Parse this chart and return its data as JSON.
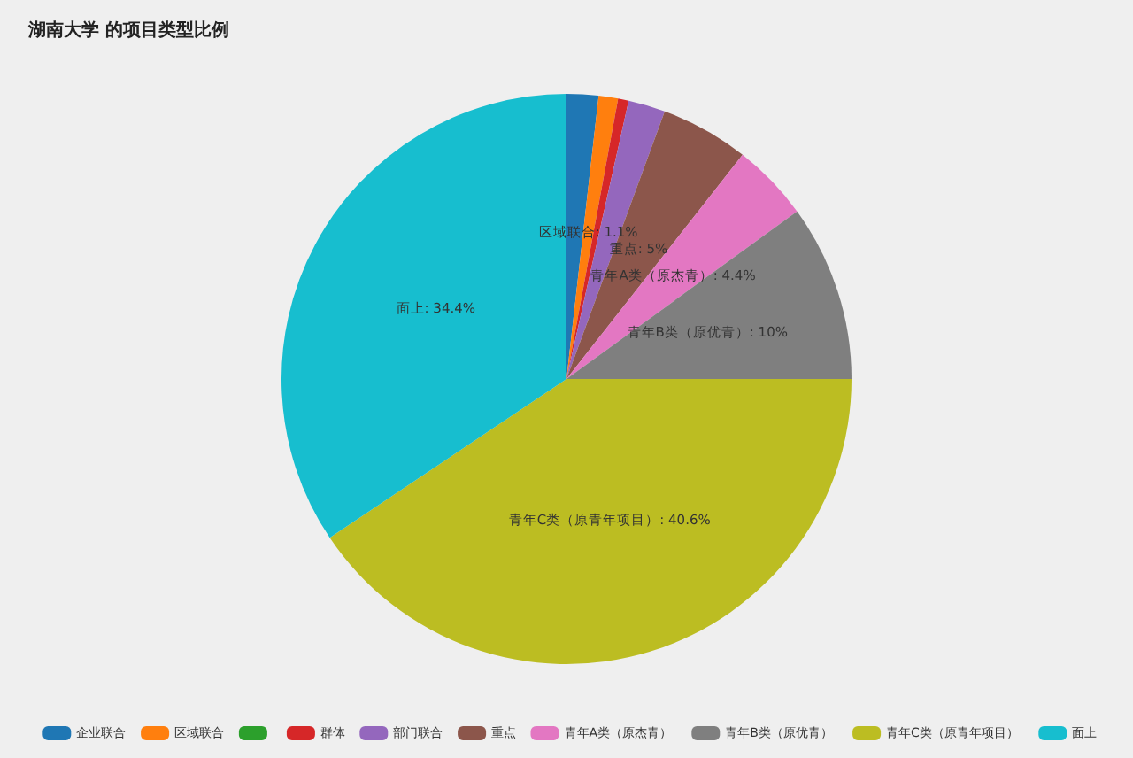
{
  "chart_data": {
    "type": "pie",
    "title": "湖南大学 的项目类型比例",
    "categories": [
      "企业联合",
      "区域联合",
      null,
      "群体",
      "部门联合",
      "重点",
      "青年A类（原杰青）",
      "青年B类（原优青）",
      "青年C类（原青年项目）",
      "面上"
    ],
    "values": [
      1.8,
      1.1,
      0,
      0.6,
      2.1,
      5,
      4.4,
      10,
      40.6,
      34.4
    ],
    "colors": [
      "#1f77b4",
      "#ff7f0e",
      "#2ca02c",
      "#d62728",
      "#9467bd",
      "#8c564b",
      "#e377c2",
      "#7f7f7f",
      "#bcbd22",
      "#17becf"
    ],
    "value_labels": [
      null,
      "区域联合: 1.1%",
      null,
      null,
      null,
      "重点: 5%",
      "青年A类（原杰青）: 4.4%",
      "青年B类（原优青）: 10%",
      "青年C类（原青年项目）: 40.6%",
      "面上: 34.4%"
    ],
    "legend": "bottom"
  }
}
